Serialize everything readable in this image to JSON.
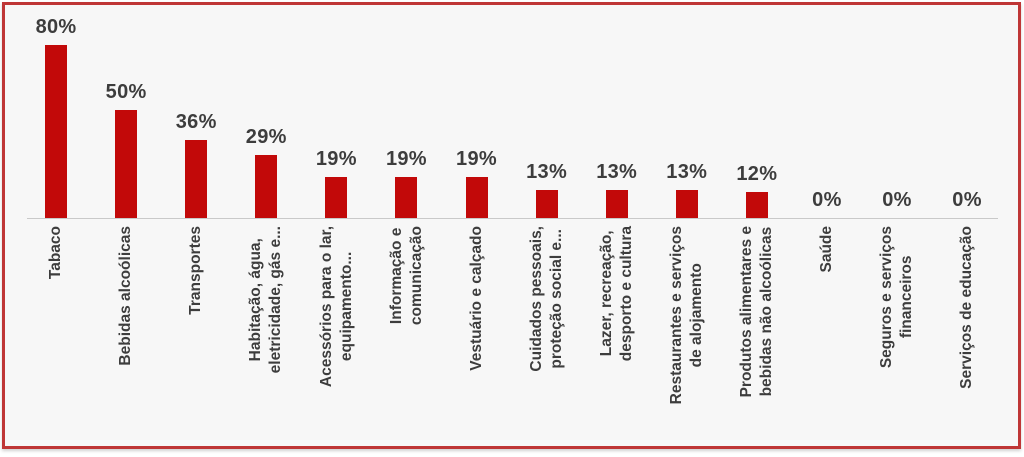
{
  "frame": {
    "page_background": "#ffffff",
    "border_color": "#bf3636",
    "background": "#f7f7f7"
  },
  "chart_data": {
    "type": "bar",
    "title": "",
    "xlabel": "",
    "ylabel": "",
    "ylim": [
      0,
      85
    ],
    "grid": false,
    "legend_position": "none",
    "bar_color": "#c20909",
    "text_color": "#3d3d3d",
    "axis_color": "#c9c9c9",
    "categories": [
      "Tabaco",
      "Bebidas alcoólicas",
      "Transportes",
      "Habitação, água,\neletricidade, gás e...",
      "Acessórios para o lar,\nequipamento...",
      "Informação e\ncomunicação",
      "Vestuário e calçado",
      "Cuidados pessoais,\nproteção social e...",
      "Lazer, recreação,\ndesporto e cultura",
      "Restaurantes e serviços\nde alojamento",
      "Produtos alimentares e\nbebidas não alcoólicas",
      "Saúde",
      "Seguros e serviços\nfinanceiros",
      "Serviços de educação"
    ],
    "values": [
      80,
      50,
      36,
      29,
      19,
      19,
      19,
      13,
      13,
      13,
      12,
      0,
      0,
      0
    ],
    "value_labels": [
      "80%",
      "50%",
      "36%",
      "29%",
      "19%",
      "19%",
      "19%",
      "13%",
      "13%",
      "13%",
      "12%",
      "0%",
      "0%",
      "0%"
    ]
  }
}
